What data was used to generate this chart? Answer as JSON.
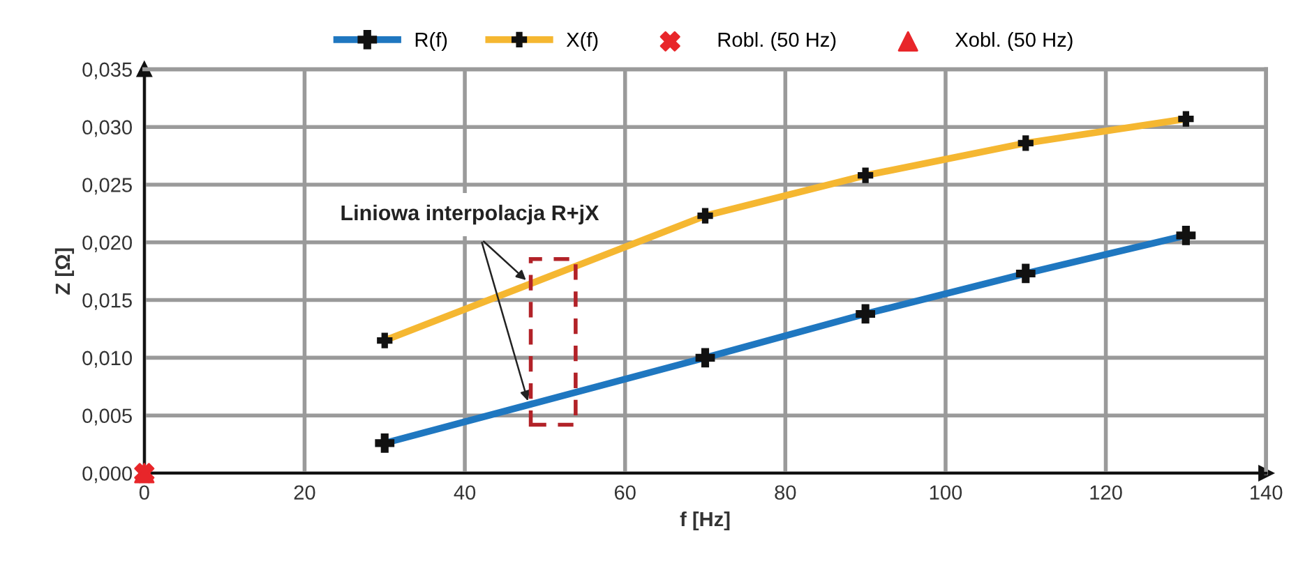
{
  "chart_data": {
    "type": "line",
    "xlabel": "f [Hz]",
    "ylabel": "Z [Ω]",
    "xlim": [
      0,
      140
    ],
    "xticks": [
      0,
      20,
      40,
      60,
      80,
      100,
      120,
      140
    ],
    "ylim": [
      0,
      0.035
    ],
    "yticks": [
      {
        "value": 0,
        "label": "0,000"
      },
      {
        "value": 0.005,
        "label": "0,005"
      },
      {
        "value": 0.01,
        "label": "0,010"
      },
      {
        "value": 0.015,
        "label": "0,015"
      },
      {
        "value": 0.02,
        "label": "0,020"
      },
      {
        "value": 0.025,
        "label": "0,025"
      },
      {
        "value": 0.03,
        "label": "0,030"
      },
      {
        "value": 0.035,
        "label": "0,035"
      }
    ],
    "grid": true,
    "legend": "top",
    "line_style": "solid",
    "x": [
      30,
      70,
      90,
      110,
      130
    ],
    "series": [
      {
        "name": "R(f)",
        "color": "#1f77c0",
        "marker": "cross",
        "values": [
          0.0026,
          0.01,
          0.0138,
          0.0173,
          0.0206
        ]
      },
      {
        "name": "X(f)",
        "color": "#f5b731",
        "marker": "cross",
        "values": [
          0.0115,
          0.0223,
          0.0258,
          0.0286,
          0.0307
        ]
      },
      {
        "name": "Robl. (50 Hz)",
        "type": "scatter",
        "color": "#e8262a",
        "marker": "x",
        "x": [
          0
        ],
        "values": [
          0
        ]
      },
      {
        "name": "Xobl. (50 Hz)",
        "type": "scatter",
        "color": "#e8262a",
        "marker": "triangle",
        "x": [
          0
        ],
        "values": [
          0
        ]
      }
    ],
    "annotations": [
      {
        "text": "Liniowa interpolacja R+jX",
        "x": 48,
        "y": 0.0165
      }
    ]
  }
}
